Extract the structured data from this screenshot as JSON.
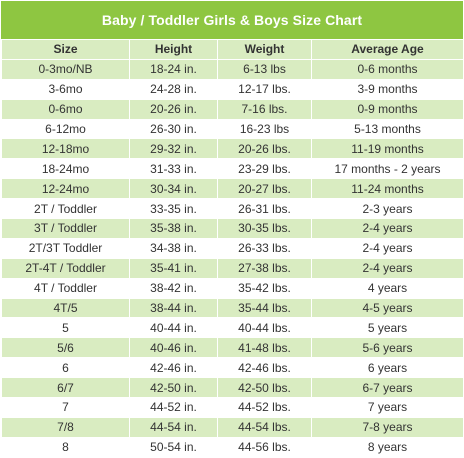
{
  "title": "Baby / Toddler Girls & Boys Size Chart",
  "colors": {
    "header": "#8ec641",
    "stripe": "#d9ecc1"
  },
  "headers": [
    "Size",
    "Height",
    "Weight",
    "Average Age"
  ],
  "rows": [
    [
      "0-3mo/NB",
      "18-24 in.",
      "6-13 lbs",
      "0-6 months"
    ],
    [
      "3-6mo",
      "24-28 in.",
      "12-17 lbs.",
      "3-9 months"
    ],
    [
      "0-6mo",
      "20-26 in.",
      "7-16 lbs.",
      "0-9 months"
    ],
    [
      "6-12mo",
      "26-30 in.",
      "16-23 lbs",
      "5-13 months"
    ],
    [
      "12-18mo",
      "29-32 in.",
      "20-26 lbs.",
      "11-19 months"
    ],
    [
      "18-24mo",
      "31-33 in.",
      "23-29 lbs.",
      "17 months - 2 years"
    ],
    [
      "12-24mo",
      "30-34 in.",
      "20-27 lbs.",
      "11-24 months"
    ],
    [
      "2T / Toddler",
      "33-35 in.",
      "26-31 lbs.",
      "2-3 years"
    ],
    [
      "3T / Toddler",
      "35-38 in.",
      "30-35 lbs.",
      "2-4 years"
    ],
    [
      "2T/3T Toddler",
      "34-38 in.",
      "26-33 lbs.",
      "2-4 years"
    ],
    [
      "2T-4T / Toddler",
      "35-41 in.",
      "27-38 lbs.",
      "2-4 years"
    ],
    [
      "4T / Toddler",
      "38-42 in.",
      "35-42 lbs.",
      "4 years"
    ],
    [
      "4T/5",
      "38-44 in.",
      "35-44 lbs.",
      "4-5 years"
    ],
    [
      "5",
      "40-44 in.",
      "40-44 lbs.",
      "5 years"
    ],
    [
      "5/6",
      "40-46 in.",
      "41-48 lbs.",
      "5-6 years"
    ],
    [
      "6",
      "42-46 in.",
      "42-46 lbs.",
      "6 years"
    ],
    [
      "6/7",
      "42-50 in.",
      "42-50 lbs.",
      "6-7 years"
    ],
    [
      "7",
      "44-52 in.",
      "44-52 lbs.",
      "7 years"
    ],
    [
      "7/8",
      "44-54 in.",
      "44-54 lbs.",
      "7-8 years"
    ],
    [
      "8",
      "50-54 in.",
      "44-56 lbs.",
      "8 years"
    ]
  ]
}
